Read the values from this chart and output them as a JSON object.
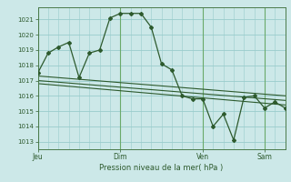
{
  "background_color": "#cce8e8",
  "grid_color": "#99cccc",
  "line_color": "#2d5a2d",
  "title": "Pression niveau de la mer( hPa )",
  "ylim": [
    1012.5,
    1021.8
  ],
  "yticks": [
    1013,
    1014,
    1015,
    1016,
    1017,
    1018,
    1019,
    1020,
    1021
  ],
  "day_labels": [
    "Jeu",
    "Dim",
    "Ven",
    "Sam"
  ],
  "day_positions": [
    0,
    48,
    96,
    132
  ],
  "xlim": [
    0,
    144
  ],
  "series1_x": [
    0,
    6,
    12,
    18,
    24,
    30,
    36,
    42,
    48,
    54,
    60,
    66,
    72,
    78,
    84,
    90,
    96,
    102,
    108,
    114,
    120,
    126,
    132,
    138,
    144
  ],
  "series1_y": [
    1017.5,
    1018.8,
    1019.2,
    1019.5,
    1017.2,
    1018.8,
    1019.0,
    1021.1,
    1021.4,
    1021.4,
    1021.4,
    1020.5,
    1018.1,
    1017.7,
    1016.0,
    1015.8,
    1015.8,
    1014.0,
    1014.8,
    1013.1,
    1015.9,
    1016.0,
    1015.2,
    1015.6,
    1015.2
  ],
  "series2_x": [
    0,
    144
  ],
  "series2_y": [
    1017.3,
    1016.0
  ],
  "series3_x": [
    0,
    144
  ],
  "series3_y": [
    1017.0,
    1015.7
  ],
  "series4_x": [
    0,
    144
  ],
  "series4_y": [
    1016.8,
    1015.4
  ]
}
